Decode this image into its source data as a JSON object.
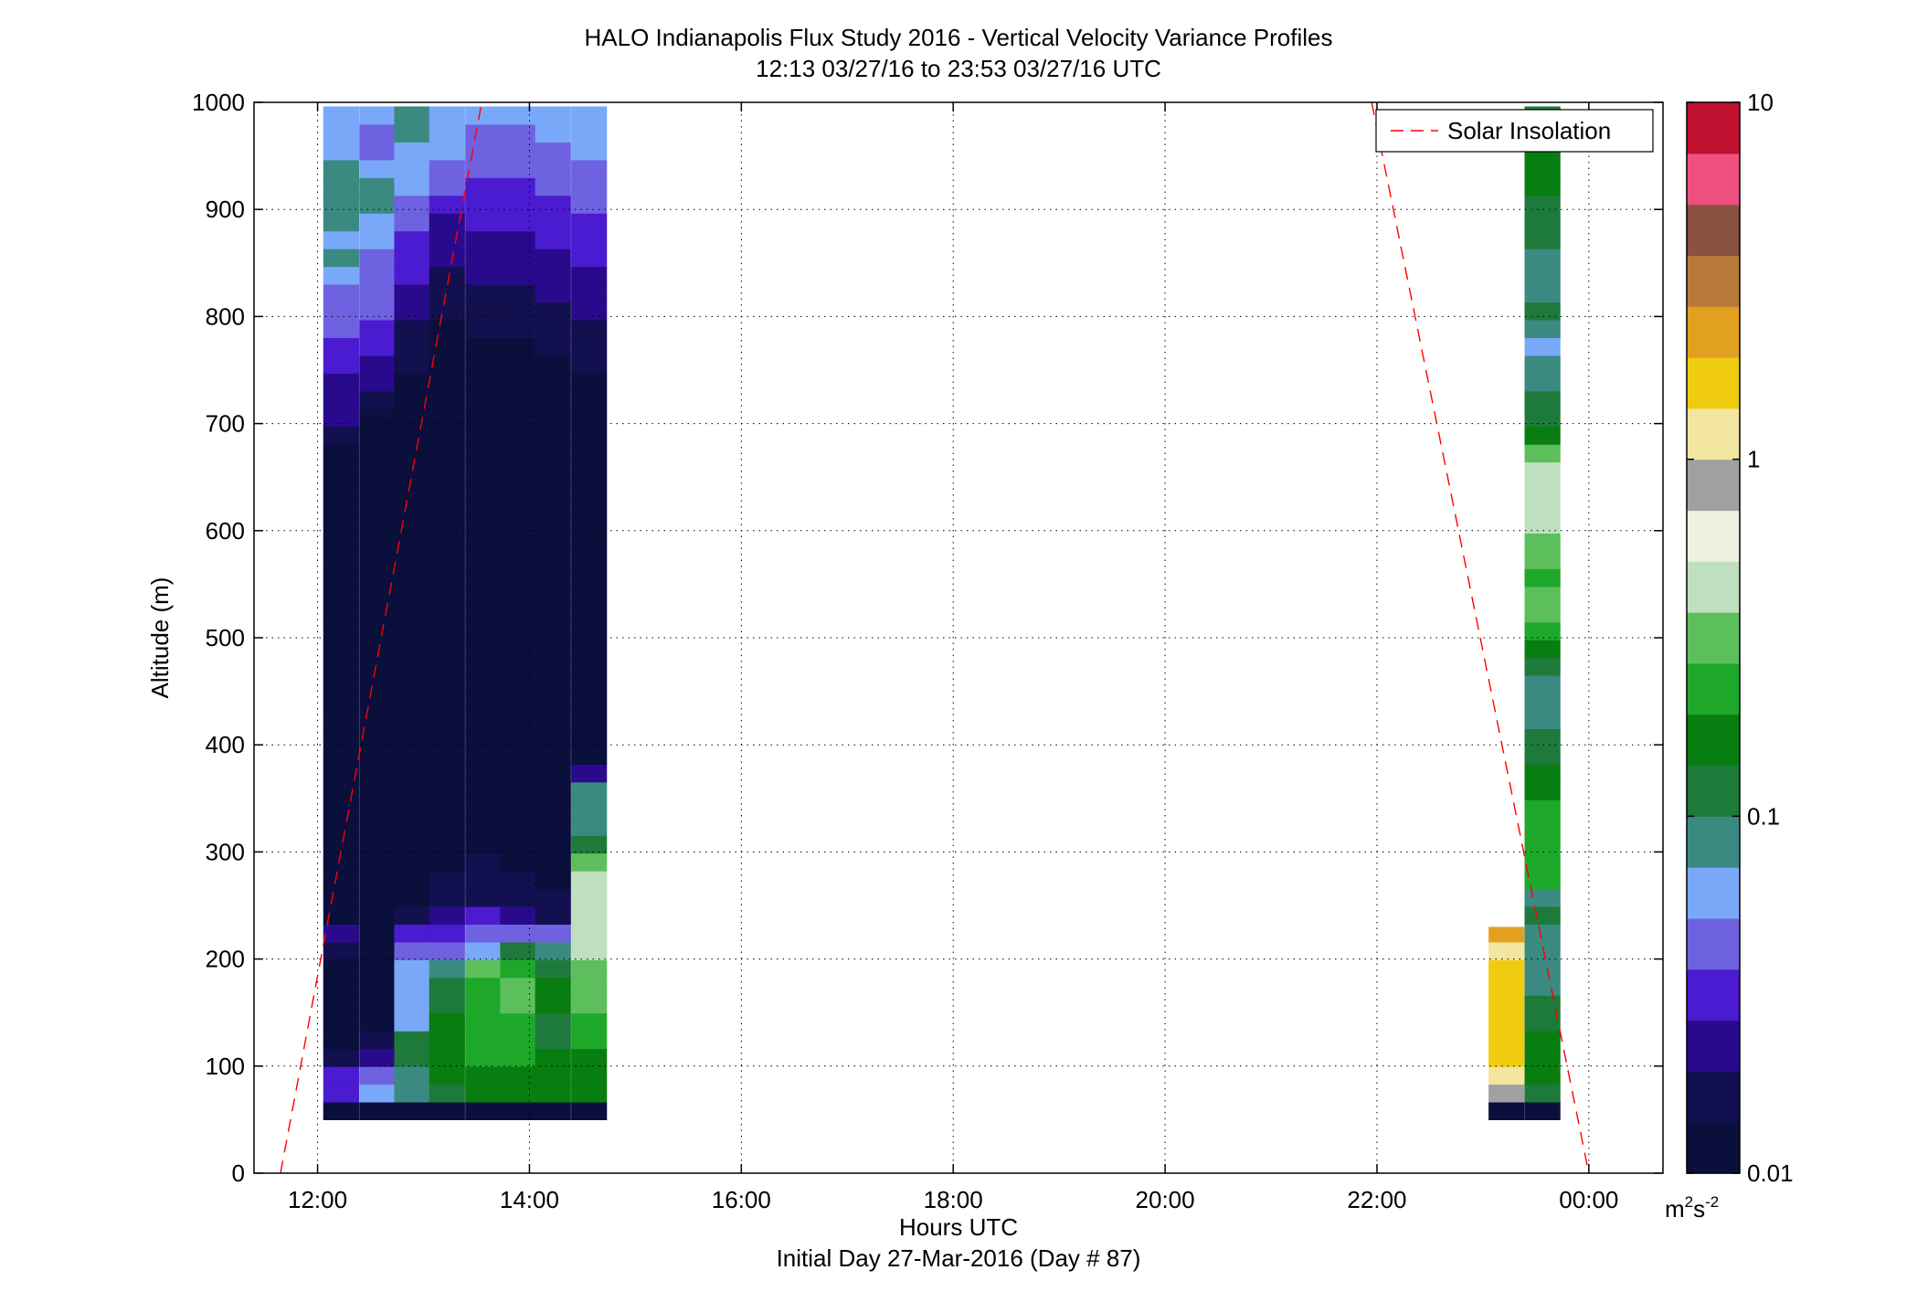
{
  "chart_data": {
    "type": "heatmap",
    "title": "HALO Indianapolis Flux Study 2016 - Vertical Velocity Variance Profiles",
    "subtitle": "12:13 03/27/16 to 23:53 03/27/16  UTC",
    "xlabel": "Hours UTC",
    "xlabel2": "Initial Day 27-Mar-2016 (Day # 87)",
    "ylabel": "Altitude (m)",
    "xlim": [
      11.4,
      24.7
    ],
    "ylim": [
      0,
      1000
    ],
    "x_ticks": [
      12,
      14,
      16,
      18,
      20,
      22,
      24
    ],
    "x_tick_labels": [
      "12:00",
      "14:00",
      "16:00",
      "18:00",
      "20:00",
      "22:00",
      "00:00"
    ],
    "y_ticks": [
      0,
      100,
      200,
      300,
      400,
      500,
      600,
      700,
      800,
      900,
      1000
    ],
    "y_tick_labels": [
      "0",
      "100",
      "200",
      "300",
      "400",
      "500",
      "600",
      "700",
      "800",
      "900",
      "1000"
    ],
    "grid": true,
    "bin_height_m": 16.6,
    "profile_width_h": 0.333,
    "colorbar": {
      "scale": "log",
      "range": [
        0.01,
        10
      ],
      "tick_values": [
        0.01,
        0.1,
        1,
        10
      ],
      "tick_labels": [
        "0.01",
        "0.1",
        "1",
        "10"
      ],
      "unit_base": "m",
      "unit_sup1": "2",
      "unit_mid": "s",
      "unit_sup2": "-2",
      "colormap": [
        "#0a0f3c",
        "#12104e",
        "#2a0a8c",
        "#4a1bd0",
        "#6e62e0",
        "#7aa8f8",
        "#3a8a82",
        "#1e7a3a",
        "#087d10",
        "#1ea82a",
        "#5cbf5c",
        "#bfe0bf",
        "#f0f0e0",
        "#a0a0a0",
        "#f2e6a0",
        "#f0cc10",
        "#e2a020",
        "#b87a3a",
        "#8a5040",
        "#ee5080",
        "#c01030"
      ]
    },
    "legend": {
      "position": "top-right",
      "entries": [
        "Solar Insolation"
      ]
    },
    "solar_insolation_line": {
      "color": "#ff0000",
      "style": "dashed",
      "segments": [
        [
          [
            11.65,
            0
          ],
          [
            13.55,
            1000
          ]
        ],
        [
          [
            21.95,
            1000
          ],
          [
            24.0,
            0
          ]
        ]
      ]
    },
    "profiles": [
      {
        "time": 12.22,
        "base": 50,
        "top": 1000,
        "log10_values": [
          -2.0,
          -1.5,
          -1.55,
          -1.8,
          -1.95,
          -2.0,
          -2.0,
          -2.0,
          -2.0,
          -1.75,
          -1.6,
          -2.0,
          -2.0,
          -2.0,
          -2.0,
          -2.0,
          -2.0,
          -2.0,
          -2.0,
          -1.9,
          -2.0,
          -1.9,
          -2.0,
          -2.0,
          -2.0,
          -2.0,
          -2.0,
          -2.0,
          -2.0,
          -2.0,
          -2.0,
          -2.0,
          -2.0,
          -2.0,
          -2.0,
          -2.0,
          -2.0,
          -1.9,
          -1.75,
          -1.7,
          -1.6,
          -1.6,
          -1.5,
          -1.45,
          -1.3,
          -1.35,
          -1.4,
          -1.25,
          -1.1,
          -1.2,
          -1.05,
          -1.05,
          -1.1,
          -1.1,
          -1.2,
          -1.2,
          -1.2
        ]
      },
      {
        "time": 12.56,
        "base": 50,
        "top": 1000,
        "log10_values": [
          -2.0,
          -1.15,
          -1.4,
          -1.7,
          -1.85,
          -2.0,
          -2.0,
          -2.0,
          -2.0,
          -2.0,
          -2.0,
          -2.0,
          -2.0,
          -2.0,
          -2.0,
          -2.0,
          -2.0,
          -2.0,
          -2.0,
          -2.0,
          -2.0,
          -2.0,
          -2.0,
          -2.0,
          -2.0,
          -2.0,
          -2.0,
          -2.0,
          -2.0,
          -2.0,
          -2.0,
          -2.0,
          -2.0,
          -2.0,
          -2.0,
          -2.0,
          -2.0,
          -2.0,
          -2.0,
          -1.95,
          -1.75,
          -1.7,
          -1.6,
          -1.55,
          -1.5,
          -1.4,
          -1.35,
          -1.3,
          -1.35,
          -1.2,
          -1.25,
          -1.1,
          -1.05,
          -1.15,
          -1.3,
          -1.4,
          -1.25
        ]
      },
      {
        "time": 12.89,
        "base": 50,
        "top": 1000,
        "log10_values": [
          -2.0,
          -1.1,
          -1.05,
          -0.9,
          -1.0,
          -1.2,
          -1.15,
          -1.2,
          -1.25,
          -1.4,
          -1.55,
          -1.8,
          -2.0,
          -2.0,
          -2.0,
          -2.0,
          -2.0,
          -2.0,
          -2.0,
          -2.0,
          -2.0,
          -2.0,
          -2.0,
          -2.0,
          -2.0,
          -2.0,
          -2.0,
          -2.0,
          -2.0,
          -2.0,
          -2.0,
          -2.0,
          -2.0,
          -2.0,
          -2.0,
          -2.0,
          -2.0,
          -2.0,
          -2.0,
          -2.0,
          -1.95,
          -1.9,
          -1.85,
          -1.8,
          -1.75,
          -1.7,
          -1.6,
          -1.55,
          -1.5,
          -1.45,
          -1.35,
          -1.3,
          -1.25,
          -1.2,
          -1.15,
          -1.1,
          -1.1
        ]
      },
      {
        "time": 13.22,
        "base": 50,
        "top": 1000,
        "log10_values": [
          -2.0,
          -0.9,
          -0.8,
          -0.8,
          -0.75,
          -0.8,
          -0.9,
          -1.0,
          -1.05,
          -1.3,
          -1.5,
          -1.6,
          -1.8,
          -1.85,
          -1.9,
          -1.95,
          -2.0,
          -2.0,
          -2.0,
          -2.0,
          -2.0,
          -2.0,
          -2.0,
          -2.0,
          -2.0,
          -2.0,
          -2.0,
          -2.0,
          -2.0,
          -2.0,
          -2.0,
          -2.0,
          -2.0,
          -2.0,
          -2.0,
          -2.0,
          -2.0,
          -2.0,
          -2.0,
          -2.0,
          -2.0,
          -2.0,
          -2.0,
          -1.95,
          -1.9,
          -1.85,
          -1.8,
          -1.75,
          -1.7,
          -1.65,
          -1.6,
          -1.5,
          -1.4,
          -1.35,
          -1.25,
          -1.2,
          -1.15
        ]
      },
      {
        "time": 13.56,
        "base": 50,
        "top": 1000,
        "log10_values": [
          -2.0,
          -0.75,
          -0.75,
          -0.7,
          -0.65,
          -0.6,
          -0.6,
          -0.6,
          -0.55,
          -1.2,
          -1.35,
          -1.5,
          -1.75,
          -1.8,
          -1.85,
          -1.9,
          -1.95,
          -2.0,
          -2.0,
          -2.0,
          -2.0,
          -2.0,
          -2.0,
          -2.0,
          -2.0,
          -2.0,
          -2.0,
          -2.0,
          -2.0,
          -2.0,
          -2.0,
          -2.0,
          -2.0,
          -2.0,
          -2.0,
          -2.0,
          -2.0,
          -2.0,
          -2.0,
          -2.0,
          -2.0,
          -2.0,
          -1.95,
          -1.9,
          -1.85,
          -1.8,
          -1.75,
          -1.7,
          -1.65,
          -1.6,
          -1.55,
          -1.5,
          -1.45,
          -1.4,
          -1.35,
          -1.3,
          -1.25
        ]
      },
      {
        "time": 13.89,
        "base": 50,
        "top": 1000,
        "log10_values": [
          -2.0,
          -0.8,
          -0.75,
          -0.7,
          -0.65,
          -0.6,
          -0.45,
          -0.55,
          -0.7,
          -1.0,
          -1.35,
          -1.6,
          -1.75,
          -1.85,
          -1.9,
          -1.95,
          -2.0,
          -2.0,
          -2.0,
          -2.0,
          -2.0,
          -2.0,
          -2.0,
          -2.0,
          -2.0,
          -2.0,
          -2.0,
          -2.0,
          -2.0,
          -2.0,
          -2.0,
          -2.0,
          -2.0,
          -2.0,
          -2.0,
          -2.0,
          -2.0,
          -2.0,
          -2.0,
          -2.0,
          -2.0,
          -2.0,
          -1.95,
          -1.9,
          -1.85,
          -1.8,
          -1.75,
          -1.7,
          -1.65,
          -1.6,
          -1.55,
          -1.5,
          -1.45,
          -1.4,
          -1.35,
          -1.3,
          -1.25
        ]
      },
      {
        "time": 14.22,
        "base": 50,
        "top": 1000,
        "log10_values": [
          -2.0,
          -0.85,
          -0.8,
          -0.75,
          -0.95,
          -0.9,
          -0.75,
          -0.8,
          -0.9,
          -1.1,
          -1.3,
          -1.75,
          -1.85,
          -1.9,
          -1.95,
          -2.0,
          -2.0,
          -2.0,
          -2.0,
          -2.0,
          -2.0,
          -2.0,
          -2.0,
          -2.0,
          -2.0,
          -2.0,
          -2.0,
          -2.0,
          -2.0,
          -2.0,
          -2.0,
          -2.0,
          -2.0,
          -2.0,
          -2.0,
          -2.0,
          -2.0,
          -2.0,
          -2.0,
          -2.0,
          -2.0,
          -1.95,
          -1.9,
          -1.85,
          -1.8,
          -1.75,
          -1.7,
          -1.65,
          -1.6,
          -1.55,
          -1.5,
          -1.45,
          -1.4,
          -1.35,
          -1.3,
          -1.25,
          -1.2
        ]
      },
      {
        "time": 14.56,
        "base": 50,
        "top": 1000,
        "log10_values": [
          -2.0,
          -0.85,
          -0.8,
          -0.75,
          -0.7,
          -0.6,
          -0.55,
          -0.45,
          -0.45,
          -0.35,
          -0.4,
          -0.3,
          -0.3,
          -0.3,
          -0.45,
          -1.0,
          -1.1,
          -1.05,
          -1.1,
          -1.65,
          -2.0,
          -2.0,
          -2.0,
          -2.0,
          -2.0,
          -2.0,
          -2.0,
          -2.0,
          -2.0,
          -2.0,
          -2.0,
          -2.0,
          -2.0,
          -2.0,
          -2.0,
          -2.0,
          -2.0,
          -2.0,
          -2.0,
          -2.0,
          -1.95,
          -1.9,
          -1.85,
          -1.8,
          -1.75,
          -1.7,
          -1.65,
          -1.6,
          -1.55,
          -1.5,
          -1.45,
          -1.4,
          -1.35,
          -1.3,
          -1.25,
          -1.2,
          -1.15
        ]
      },
      {
        "time": 23.22,
        "base": 50,
        "top": 230,
        "log10_values": [
          -2.0,
          -0.1,
          0.1,
          0.15,
          0.15,
          0.15,
          0.2,
          0.25,
          0.2,
          0.1,
          0.4,
          0.9
        ]
      },
      {
        "time": 23.56,
        "base": 50,
        "top": 1000,
        "log10_values": [
          -2.0,
          -0.95,
          -0.85,
          -0.8,
          -0.75,
          -0.95,
          -1.0,
          -1.05,
          -1.1,
          -1.1,
          -1.05,
          -1.0,
          -1.05,
          -0.7,
          -0.65,
          -0.6,
          -0.6,
          -0.7,
          -0.8,
          -0.85,
          -0.9,
          -1.0,
          -1.05,
          -1.1,
          -1.1,
          -0.9,
          -0.75,
          -0.6,
          -0.5,
          -0.55,
          -0.6,
          -0.55,
          -0.45,
          -0.3,
          -0.3,
          -0.35,
          -0.4,
          -0.5,
          -0.8,
          -0.9,
          -1.0,
          -1.05,
          -1.1,
          -1.2,
          -1.1,
          -1.0,
          -1.05,
          -1.1,
          -1.1,
          -1.0,
          -0.95,
          -0.9,
          -0.85,
          -0.8,
          -0.75,
          -0.85,
          -0.95
        ]
      }
    ]
  }
}
